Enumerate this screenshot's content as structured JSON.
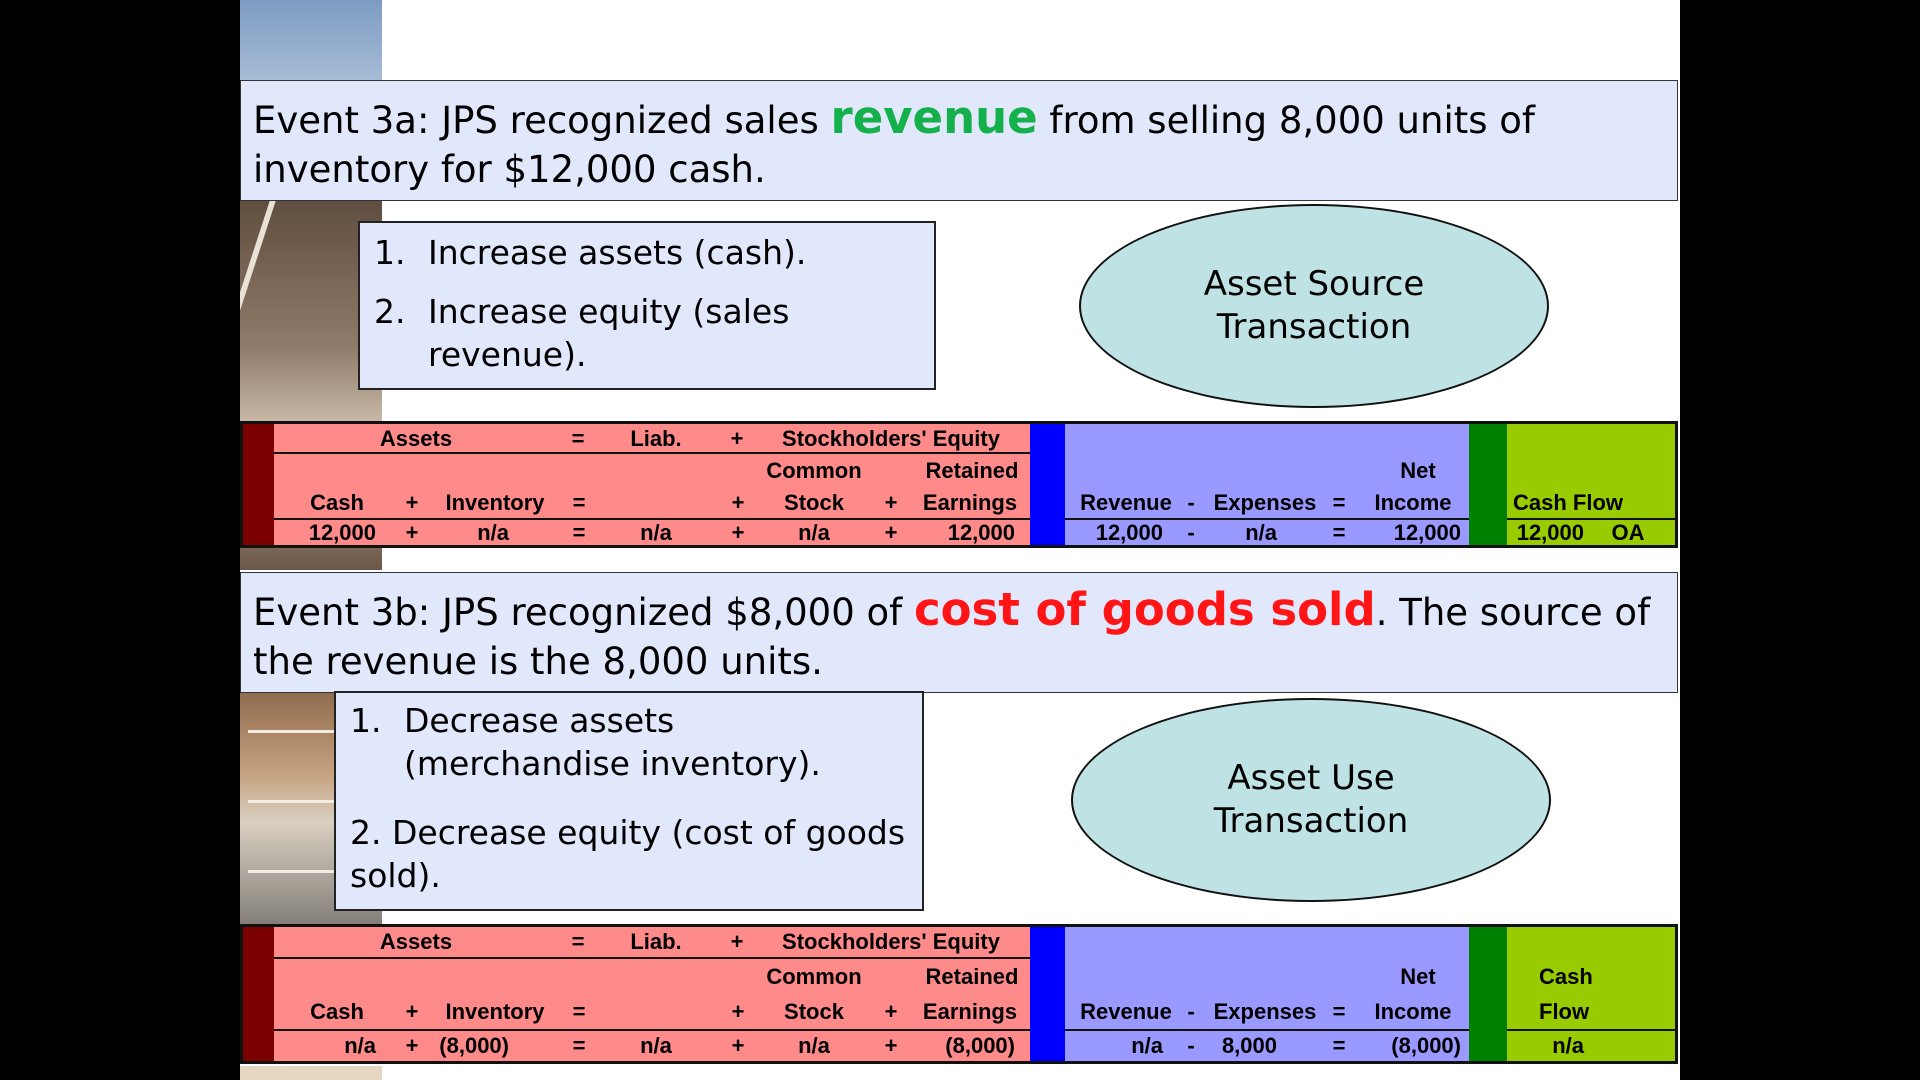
{
  "event_3a": {
    "title_pre": "Event 3a:  JPS recognized sales ",
    "title_highlight": "revenue",
    "title_post": " from selling 8,000 units of inventory for $12,000 cash.",
    "steps": [
      {
        "num": "1.",
        "text": "Increase assets (cash)."
      },
      {
        "num": "2.",
        "text": "Increase equity (sales revenue)."
      }
    ],
    "transaction_type": "Asset Source Transaction",
    "table": {
      "h_assets": "Assets",
      "h_eq1": "=",
      "h_liab": "Liab.",
      "h_plus1": "+",
      "h_se": "Stockholders' Equity",
      "h_common": "Common",
      "h_retained": "Retained",
      "h_net": "Net",
      "h_cash": "Cash",
      "h_plus2": "+",
      "h_inventory": "Inventory",
      "h_eq2": "=",
      "h_plus3": "+",
      "h_stock": "Stock",
      "h_plus4": "+",
      "h_earnings": "Earnings",
      "h_revenue": "Revenue",
      "h_minus": "-",
      "h_expenses": "Expenses",
      "h_eq3": "=",
      "h_income": "Income",
      "h_cashflow": "Cash Flow",
      "h_cashflow2": "",
      "v_cash": "12,000",
      "v_plus1": "+",
      "v_inventory": "n/a",
      "v_eq1": "=",
      "v_liab": "n/a",
      "v_plus2": "+",
      "v_common": "n/a",
      "v_plus3": "+",
      "v_retained": "12,000",
      "v_revenue": "12,000",
      "v_minus": "-",
      "v_expenses": "n/a",
      "v_eq2": "=",
      "v_net": "12,000",
      "v_cashflow": "12,000",
      "v_activity": "OA"
    }
  },
  "event_3b": {
    "title_pre": "Event 3b:  JPS recognized $8,000 of ",
    "title_highlight": "cost of goods sold",
    "title_post": ". The source of the revenue is the 8,000 units.",
    "steps": [
      {
        "num": "1.",
        "text": "Decrease assets (merchandise inventory)."
      },
      {
        "num": "",
        "text": "2. Decrease equity (cost of goods sold)."
      }
    ],
    "transaction_type": "Asset Use Transaction",
    "table": {
      "h_assets": "Assets",
      "h_eq1": "=",
      "h_liab": "Liab.",
      "h_plus1": "+",
      "h_se": "Stockholders' Equity",
      "h_common": "Common",
      "h_retained": "Retained",
      "h_net": "Net",
      "h_cash": "Cash",
      "h_plus2": "+",
      "h_inventory": "Inventory",
      "h_eq2": "=",
      "h_plus3": "+",
      "h_stock": "Stock",
      "h_plus4": "+",
      "h_earnings": "Earnings",
      "h_revenue": "Revenue",
      "h_minus": "-",
      "h_expenses": "Expenses",
      "h_eq3": "=",
      "h_income": "Income",
      "h_cashflow": "Cash",
      "h_cashflow2": "Flow",
      "v_cash": "n/a",
      "v_plus1": "+",
      "v_inventory": "(8,000)",
      "v_eq1": "=",
      "v_liab": "n/a",
      "v_plus2": "+",
      "v_common": "n/a",
      "v_plus3": "+",
      "v_retained": "(8,000)",
      "v_revenue": "n/a",
      "v_minus": "-",
      "v_expenses": "8,000",
      "v_eq2": "=",
      "v_net": "(8,000)",
      "v_cashflow": "n/a",
      "v_activity": ""
    }
  }
}
